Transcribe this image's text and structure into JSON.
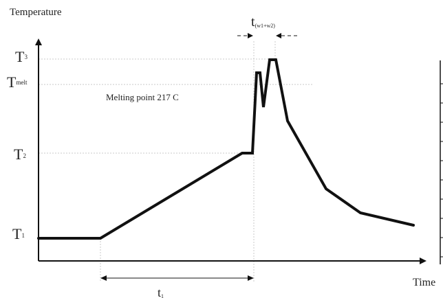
{
  "axes": {
    "y_label": "Temperature",
    "x_label": "Time"
  },
  "levels": {
    "t3": "T",
    "t3_sub": "3",
    "tmelt": "T",
    "tmelt_sub": "melt",
    "t2": "T",
    "t2_sub": "2",
    "t1": "T",
    "t1_sub": "1"
  },
  "annotations": {
    "melting_point": "Melting point 217 C",
    "t_peak": "t",
    "t_peak_sub": "(w1+w2)",
    "t_ramp": "t",
    "t_ramp_sub": "1"
  }
}
